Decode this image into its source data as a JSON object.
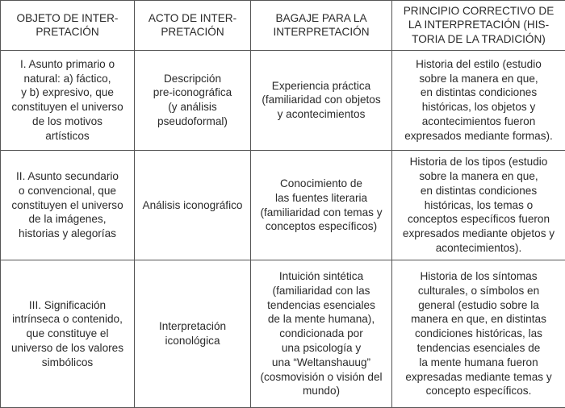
{
  "table": {
    "headers": [
      "OBJETO DE INTER-\nPRETACIÓN",
      "ACTO DE INTER-\nPRETACIÓN",
      "BAGAJE PARA LA\nINTERPRETACIÓN",
      "PRINCIPIO CORRECTIVO DE\nLA INTERPRETACIÓN (HIS-\nTORIA DE LA TRADICIÓN)"
    ],
    "rows": [
      [
        "I. Asunto primario o\nnatural: a) fáctico,\ny b) expresivo, que\nconstituyen el universo\nde los motivos\nartísticos",
        "Descripción\npre-iconográfica\n(y análisis\npseudoformal)",
        "Experiencia práctica\n(familiaridad con objetos\ny acontecimientos",
        "Historia del estilo (estudio\nsobre la manera en que,\nen distintas condiciones\nhistóricas, los objetos y\nacontecimientos fueron\nexpresados mediante formas)."
      ],
      [
        "II. Asunto secundario\no convencional, que\nconstituyen el universo\nde la imágenes,\nhistorias y alegorías",
        "Análisis iconográfico",
        "Conocimiento de\nlas fuentes literaria\n(familiaridad con temas y\nconceptos específicos)",
        "Historia de los tipos (estudio\nsobre la manera en que,\nen distintas condiciones\nhistóricas, los temas o\nconceptos específicos fueron\nexpresados mediante objetos y\nacontecimientos)."
      ],
      [
        "III. Significación\nintrínseca o contenido,\nque constituye el\nuniverso de los valores\nsimbólicos",
        "Interpretación\niconológica",
        "Intuición sintética\n(familiaridad con las\ntendencias esenciales\nde la mente humana),\ncondicionada por\nuna psicología y\nuna “Weltanshauug”\n(cosmovisión o visión del\nmundo)",
        "Historia de los síntomas\nculturales, o símbolos en\ngeneral (estudio sobre la\nmanera en que, en distintas\ncondiciones históricas, las\ntendencias esenciales de\nla mente humana fueron\nexpresadas mediante temas y\nconcepto específicos."
      ]
    ]
  }
}
